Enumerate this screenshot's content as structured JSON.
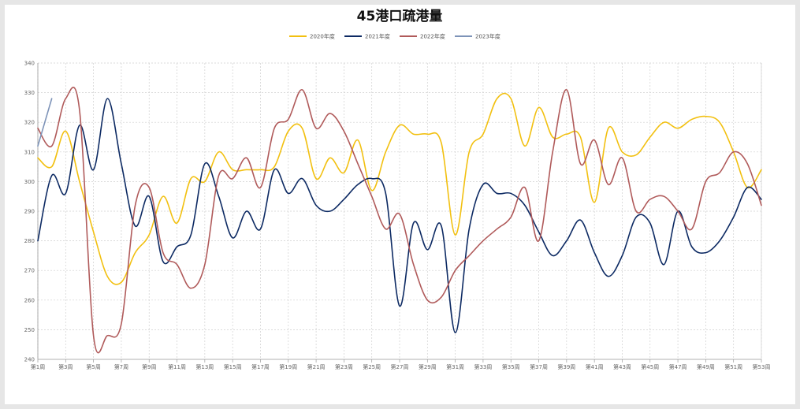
{
  "chart_data": {
    "type": "line",
    "title": "45港口疏港量",
    "xlabel": "",
    "ylabel": "",
    "ylim": [
      240,
      340
    ],
    "yticks": [
      240,
      250,
      260,
      270,
      280,
      290,
      300,
      310,
      320,
      330,
      340
    ],
    "grid": true,
    "legend_position": "top-center",
    "x_ticklabels": [
      "第1周",
      "第3周",
      "第5周",
      "第7周",
      "第9周",
      "第11周",
      "第13周",
      "第15周",
      "第17周",
      "第19周",
      "第21周",
      "第23周",
      "第25周",
      "第27周",
      "第29周",
      "第31周",
      "第33周",
      "第35周",
      "第37周",
      "第39周",
      "第41周",
      "第43周",
      "第45周",
      "第47周",
      "第49周",
      "第51周",
      "第53周"
    ],
    "weeks": [
      1,
      2,
      3,
      4,
      5,
      6,
      7,
      8,
      9,
      10,
      11,
      12,
      13,
      14,
      15,
      16,
      17,
      18,
      19,
      20,
      21,
      22,
      23,
      24,
      25,
      26,
      27,
      28,
      29,
      30,
      31,
      32,
      33,
      34,
      35,
      36,
      37,
      38,
      39,
      40,
      41,
      42,
      43,
      44,
      45,
      46,
      47,
      48,
      49,
      50,
      51,
      52,
      53
    ],
    "series": [
      {
        "name": "2020年度",
        "color": "#f2c010",
        "values": [
          308,
          305,
          317,
          300,
          283,
          268,
          266,
          276,
          282,
          295,
          286,
          301,
          300,
          310,
          304,
          304,
          304,
          305,
          317,
          318,
          301,
          308,
          303,
          314,
          297,
          310,
          319,
          316,
          316,
          313,
          282,
          310,
          316,
          328,
          328,
          312,
          325,
          315,
          316,
          315,
          293,
          318,
          310,
          309,
          315,
          320,
          318,
          321,
          322,
          320,
          310,
          298,
          304
        ]
      },
      {
        "name": "2021年度",
        "color": "#0d2a63",
        "values": [
          280,
          302,
          296,
          319,
          304,
          328,
          306,
          285,
          295,
          273,
          278,
          282,
          306,
          295,
          281,
          290,
          284,
          304,
          296,
          301,
          292,
          290,
          294,
          299,
          301,
          296,
          258,
          286,
          277,
          285,
          249,
          284,
          299,
          296,
          296,
          292,
          283,
          275,
          280,
          287,
          276,
          268,
          275,
          288,
          286,
          272,
          290,
          278,
          276,
          280,
          288,
          298,
          294
        ]
      },
      {
        "name": "2022年度",
        "color": "#b05a5a",
        "values": [
          318,
          312,
          328,
          324,
          248,
          248,
          252,
          292,
          298,
          276,
          272,
          264,
          272,
          302,
          301,
          308,
          298,
          318,
          321,
          331,
          318,
          323,
          317,
          306,
          295,
          284,
          289,
          272,
          260,
          261,
          270,
          275,
          280,
          284,
          288,
          298,
          280,
          310,
          331,
          306,
          314,
          299,
          308,
          290,
          294,
          295,
          290,
          284,
          300,
          303,
          310,
          306,
          292
        ]
      },
      {
        "name": "2023年度",
        "color": "#7d93b8",
        "values": [
          312,
          328
        ]
      }
    ]
  }
}
